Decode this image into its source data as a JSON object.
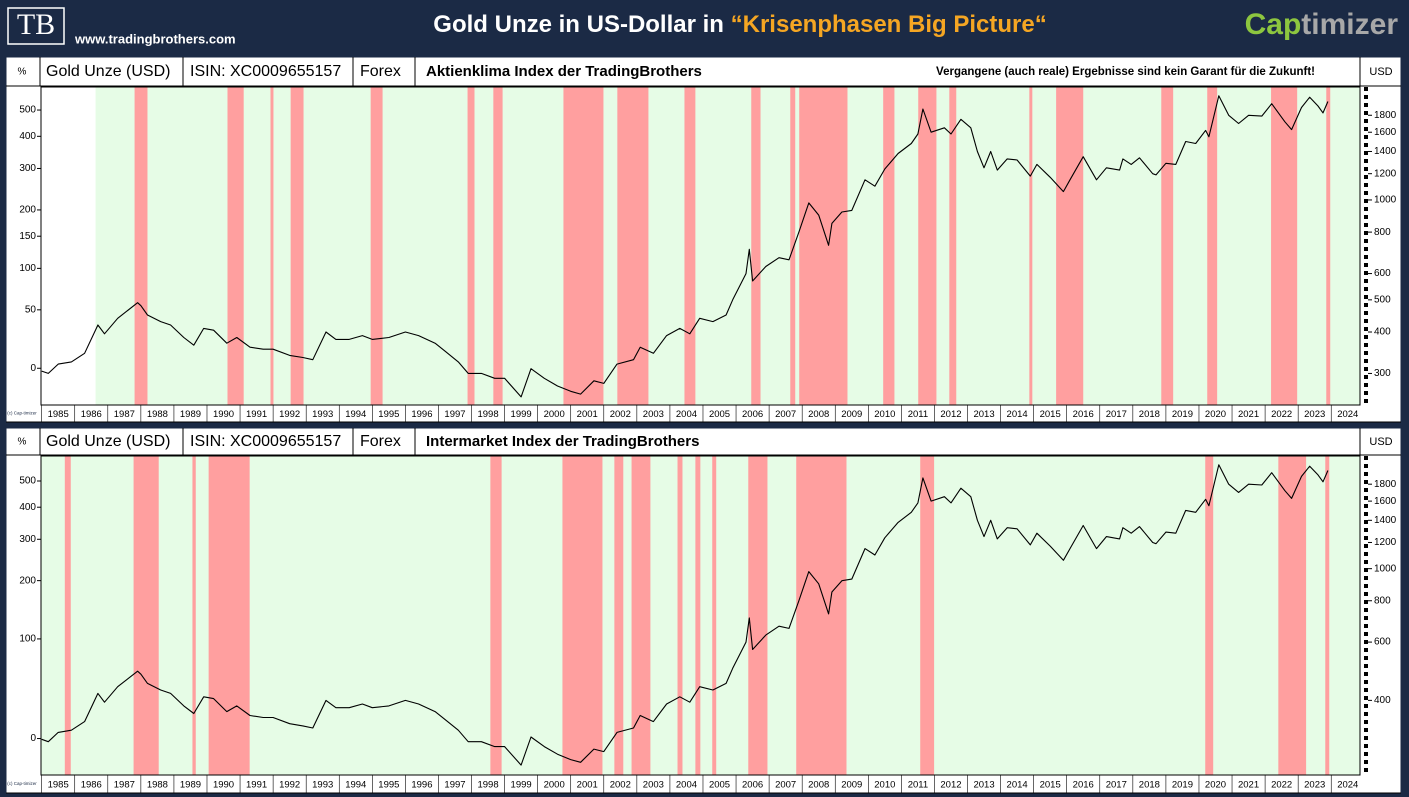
{
  "header": {
    "logo": "TB",
    "website": "www.tradingbrothers.com",
    "title": "Gold Unze in US-Dollar in ",
    "title_highlight": "“Krisenphasen Big Picture“",
    "brand_a": "Cap",
    "brand_b": "timizer"
  },
  "chart_data": [
    {
      "type": "line",
      "percent_label": "%",
      "isin": "ISIN: XC0009655157",
      "market": "Forex",
      "title": "Aktienklima Index der TradingBrothers",
      "note": "Vergangene (auch reale) Ergebnisse sind kein Garant für die Zukunft!",
      "y_unit": "USD",
      "copyright": "(c) Cap-timizer",
      "log_scale": true,
      "y2_scale": "log-percent",
      "xlim": [
        1984.98,
        2024.87
      ],
      "ylim": [
        241,
        2190
      ],
      "y2lim": [
        -22.5,
        604
      ],
      "yticks": [
        300,
        400,
        500,
        600,
        800,
        1000,
        1200,
        1400,
        1600,
        1800
      ],
      "y2ticks": [
        0,
        50,
        100,
        150,
        200,
        300,
        400,
        500
      ],
      "xticks": [
        1985,
        1986,
        1987,
        1988,
        1989,
        1990,
        1991,
        1992,
        1993,
        1994,
        1995,
        1996,
        1997,
        1998,
        1999,
        2000,
        2001,
        2002,
        2003,
        2004,
        2005,
        2006,
        2007,
        2008,
        2009,
        2010,
        2011,
        2012,
        2013,
        2014,
        2015,
        2016,
        2017,
        2018,
        2019,
        2020,
        2021,
        2022,
        2023,
        2024
      ],
      "green_color": "#e6fce6",
      "red_color": "#ff9f9f",
      "green_phase": {
        "start": 1986.63,
        "end": 2024.87
      },
      "red_phases": [
        {
          "start": 1987.81,
          "end": 1988.2
        },
        {
          "start": 1990.62,
          "end": 1991.11
        },
        {
          "start": 1991.92,
          "end": 1992.01
        },
        {
          "start": 1992.53,
          "end": 1992.92
        },
        {
          "start": 1994.95,
          "end": 1995.31
        },
        {
          "start": 1997.88,
          "end": 1998.09
        },
        {
          "start": 1998.66,
          "end": 1998.94
        },
        {
          "start": 2000.78,
          "end": 2001.99
        },
        {
          "start": 2002.41,
          "end": 2003.35
        },
        {
          "start": 2004.44,
          "end": 2004.77
        },
        {
          "start": 2006.46,
          "end": 2006.74
        },
        {
          "start": 2007.64,
          "end": 2007.79
        },
        {
          "start": 2007.91,
          "end": 2009.37
        },
        {
          "start": 2010.45,
          "end": 2010.79
        },
        {
          "start": 2011.51,
          "end": 2012.06
        },
        {
          "start": 2012.45,
          "end": 2012.66
        },
        {
          "start": 2014.87,
          "end": 2014.96
        },
        {
          "start": 2015.68,
          "end": 2016.5
        },
        {
          "start": 2018.86,
          "end": 2019.22
        },
        {
          "start": 2020.25,
          "end": 2020.55
        },
        {
          "start": 2022.18,
          "end": 2022.97
        },
        {
          "start": 2023.85,
          "end": 2023.97
        }
      ],
      "series": [
        {
          "name": "Gold Unze (USD)",
          "color": "#000000",
          "axis": "y",
          "x": [
            1985.0,
            1985.2,
            1985.5,
            1985.9,
            1986.3,
            1986.7,
            1986.9,
            1987.3,
            1987.9,
            1988.0,
            1988.2,
            1988.6,
            1988.9,
            1989.3,
            1989.6,
            1989.9,
            1990.2,
            1990.6,
            1990.9,
            1991.3,
            1991.7,
            1992.0,
            1992.5,
            1992.9,
            1993.2,
            1993.6,
            1993.9,
            1994.3,
            1994.7,
            1995.0,
            1995.5,
            1996.0,
            1996.4,
            1996.9,
            1997.2,
            1997.6,
            1997.9,
            1998.3,
            1998.7,
            1999.0,
            1999.5,
            1999.8,
            2000.2,
            2000.6,
            2001.0,
            2001.3,
            2001.7,
            2002.0,
            2002.4,
            2002.9,
            2003.1,
            2003.5,
            2003.9,
            2004.3,
            2004.6,
            2004.9,
            2005.3,
            2005.7,
            2005.9,
            2006.3,
            2006.4,
            2006.5,
            2006.9,
            2007.3,
            2007.6,
            2007.9,
            2008.2,
            2008.5,
            2008.8,
            2008.9,
            2009.2,
            2009.5,
            2009.9,
            2010.2,
            2010.5,
            2010.9,
            2011.3,
            2011.5,
            2011.65,
            2011.9,
            2012.3,
            2012.5,
            2012.8,
            2013.1,
            2013.3,
            2013.5,
            2013.7,
            2013.9,
            2014.2,
            2014.5,
            2014.9,
            2015.1,
            2015.5,
            2015.9,
            2016.1,
            2016.5,
            2016.9,
            2017.2,
            2017.6,
            2017.7,
            2017.95,
            2018.2,
            2018.6,
            2018.7,
            2019.0,
            2019.3,
            2019.6,
            2019.9,
            2020.2,
            2020.3,
            2020.6,
            2020.9,
            2021.2,
            2021.5,
            2021.9,
            2022.2,
            2022.6,
            2022.8,
            2023.1,
            2023.35,
            2023.6,
            2023.75,
            2023.9
          ],
          "values": [
            305,
            300,
            320,
            325,
            345,
            420,
            395,
            440,
            490,
            480,
            450,
            430,
            420,
            385,
            365,
            410,
            405,
            370,
            385,
            360,
            355,
            355,
            340,
            335,
            330,
            400,
            380,
            380,
            390,
            380,
            385,
            400,
            390,
            370,
            350,
            325,
            300,
            300,
            290,
            290,
            255,
            310,
            290,
            275,
            265,
            260,
            285,
            280,
            320,
            330,
            360,
            345,
            390,
            410,
            395,
            440,
            430,
            450,
            500,
            600,
            710,
            570,
            630,
            670,
            660,
            800,
            980,
            900,
            730,
            850,
            920,
            930,
            1150,
            1100,
            1240,
            1380,
            1480,
            1580,
            1880,
            1600,
            1650,
            1580,
            1750,
            1650,
            1400,
            1250,
            1400,
            1230,
            1330,
            1320,
            1180,
            1280,
            1170,
            1060,
            1150,
            1350,
            1150,
            1250,
            1230,
            1330,
            1280,
            1340,
            1200,
            1190,
            1290,
            1280,
            1500,
            1480,
            1620,
            1550,
            2060,
            1800,
            1700,
            1800,
            1790,
            1950,
            1720,
            1630,
            1900,
            2040,
            1920,
            1830,
            1980
          ]
        }
      ]
    },
    {
      "type": "line",
      "percent_label": "%",
      "isin": "ISIN: XC0009655157",
      "market": "Forex",
      "title": "Intermarket Index der TradingBrothers",
      "y_unit": "USD",
      "copyright": "(c) Cap-timizer",
      "log_scale": true,
      "y2_scale": "log-percent",
      "xlim": [
        1984.98,
        2024.87
      ],
      "ylim": [
        238,
        2190
      ],
      "y2lim": [
        -22.4,
        614
      ],
      "yticks": [
        400,
        600,
        800,
        1000,
        1200,
        1400,
        1600,
        1800
      ],
      "y2ticks": [
        0,
        100,
        200,
        300,
        400,
        500
      ],
      "xticks": [
        1985,
        1986,
        1987,
        1988,
        1989,
        1990,
        1991,
        1992,
        1993,
        1994,
        1995,
        1996,
        1997,
        1998,
        1999,
        2000,
        2001,
        2002,
        2003,
        2004,
        2005,
        2006,
        2007,
        2008,
        2009,
        2010,
        2011,
        2012,
        2013,
        2014,
        2015,
        2016,
        2017,
        2018,
        2019,
        2020,
        2021,
        2022,
        2023,
        2024
      ],
      "green_color": "#e6fce6",
      "red_color": "#ff9f9f",
      "green_phase": {
        "start": 1984.98,
        "end": 2024.87
      },
      "red_phases": [
        {
          "start": 1985.7,
          "end": 1985.88
        },
        {
          "start": 1987.78,
          "end": 1988.54
        },
        {
          "start": 1989.56,
          "end": 1989.66
        },
        {
          "start": 1990.05,
          "end": 1991.29
        },
        {
          "start": 1998.57,
          "end": 1998.91
        },
        {
          "start": 2000.75,
          "end": 2001.96
        },
        {
          "start": 2002.32,
          "end": 2002.59
        },
        {
          "start": 2002.84,
          "end": 2003.41
        },
        {
          "start": 2004.23,
          "end": 2004.38
        },
        {
          "start": 2004.77,
          "end": 2004.92
        },
        {
          "start": 2005.28,
          "end": 2005.4
        },
        {
          "start": 2006.37,
          "end": 2006.95
        },
        {
          "start": 2007.82,
          "end": 2009.34
        },
        {
          "start": 2011.57,
          "end": 2011.99
        },
        {
          "start": 2020.19,
          "end": 2020.43
        },
        {
          "start": 2022.4,
          "end": 2023.24
        },
        {
          "start": 2023.82,
          "end": 2023.94
        }
      ],
      "series": [
        {
          "name": "Gold Unze (USD)",
          "color": "#000000",
          "axis": "y",
          "x": [
            1985.0,
            1985.2,
            1985.5,
            1985.9,
            1986.3,
            1986.7,
            1986.9,
            1987.3,
            1987.9,
            1988.0,
            1988.2,
            1988.6,
            1988.9,
            1989.3,
            1989.6,
            1989.9,
            1990.2,
            1990.6,
            1990.9,
            1991.3,
            1991.7,
            1992.0,
            1992.5,
            1992.9,
            1993.2,
            1993.6,
            1993.9,
            1994.3,
            1994.7,
            1995.0,
            1995.5,
            1996.0,
            1996.4,
            1996.9,
            1997.2,
            1997.6,
            1997.9,
            1998.3,
            1998.7,
            1999.0,
            1999.5,
            1999.8,
            2000.2,
            2000.6,
            2001.0,
            2001.3,
            2001.7,
            2002.0,
            2002.4,
            2002.9,
            2003.1,
            2003.5,
            2003.9,
            2004.3,
            2004.6,
            2004.9,
            2005.3,
            2005.7,
            2005.9,
            2006.3,
            2006.4,
            2006.5,
            2006.9,
            2007.3,
            2007.6,
            2007.9,
            2008.2,
            2008.5,
            2008.8,
            2008.9,
            2009.2,
            2009.5,
            2009.9,
            2010.2,
            2010.5,
            2010.9,
            2011.3,
            2011.5,
            2011.65,
            2011.9,
            2012.3,
            2012.5,
            2012.8,
            2013.1,
            2013.3,
            2013.5,
            2013.7,
            2013.9,
            2014.2,
            2014.5,
            2014.9,
            2015.1,
            2015.5,
            2015.9,
            2016.1,
            2016.5,
            2016.9,
            2017.2,
            2017.6,
            2017.7,
            2017.95,
            2018.2,
            2018.6,
            2018.7,
            2019.0,
            2019.3,
            2019.6,
            2019.9,
            2020.2,
            2020.3,
            2020.6,
            2020.9,
            2021.2,
            2021.5,
            2021.9,
            2022.2,
            2022.6,
            2022.8,
            2023.1,
            2023.35,
            2023.6,
            2023.75,
            2023.9
          ],
          "values": [
            305,
            300,
            320,
            325,
            345,
            420,
            395,
            440,
            490,
            480,
            450,
            430,
            420,
            385,
            365,
            410,
            405,
            370,
            385,
            360,
            355,
            355,
            340,
            335,
            330,
            400,
            380,
            380,
            390,
            380,
            385,
            400,
            390,
            370,
            350,
            325,
            300,
            300,
            290,
            290,
            255,
            310,
            290,
            275,
            265,
            260,
            285,
            280,
            320,
            330,
            360,
            345,
            390,
            410,
            395,
            440,
            430,
            450,
            500,
            600,
            710,
            570,
            630,
            670,
            660,
            800,
            980,
            900,
            730,
            850,
            920,
            930,
            1150,
            1100,
            1240,
            1380,
            1480,
            1580,
            1880,
            1600,
            1650,
            1580,
            1750,
            1650,
            1400,
            1250,
            1400,
            1230,
            1330,
            1320,
            1180,
            1280,
            1170,
            1060,
            1150,
            1350,
            1150,
            1250,
            1230,
            1330,
            1280,
            1340,
            1200,
            1190,
            1290,
            1280,
            1500,
            1480,
            1620,
            1550,
            2060,
            1800,
            1700,
            1800,
            1790,
            1950,
            1720,
            1630,
            1900,
            2040,
            1920,
            1830,
            1980
          ]
        }
      ]
    }
  ]
}
